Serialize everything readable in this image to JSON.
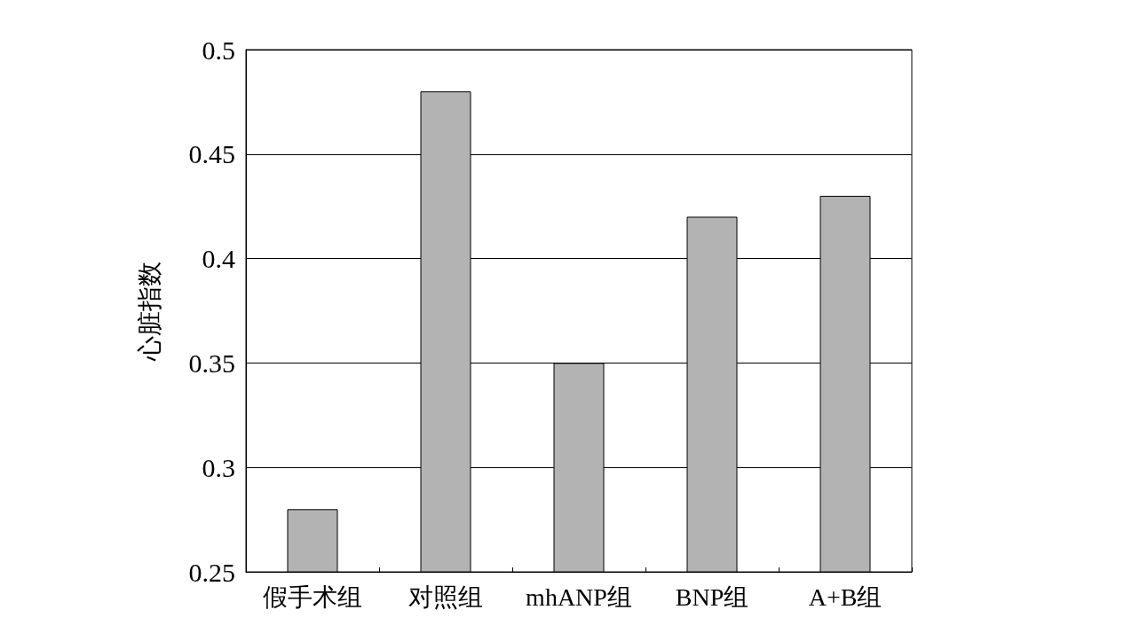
{
  "chart_data": {
    "type": "bar",
    "ylabel": "心脏指数",
    "categories": [
      "假手术组",
      "对照组",
      "mhANP组",
      "BNP组",
      "A+B组"
    ],
    "values": [
      0.28,
      0.48,
      0.35,
      0.42,
      0.43
    ],
    "color": "#b3b3b3",
    "ylim": [
      0.25,
      0.5
    ],
    "yticks": [
      0.25,
      0.3,
      0.35,
      0.4,
      0.45,
      0.5
    ],
    "grid": "y"
  }
}
